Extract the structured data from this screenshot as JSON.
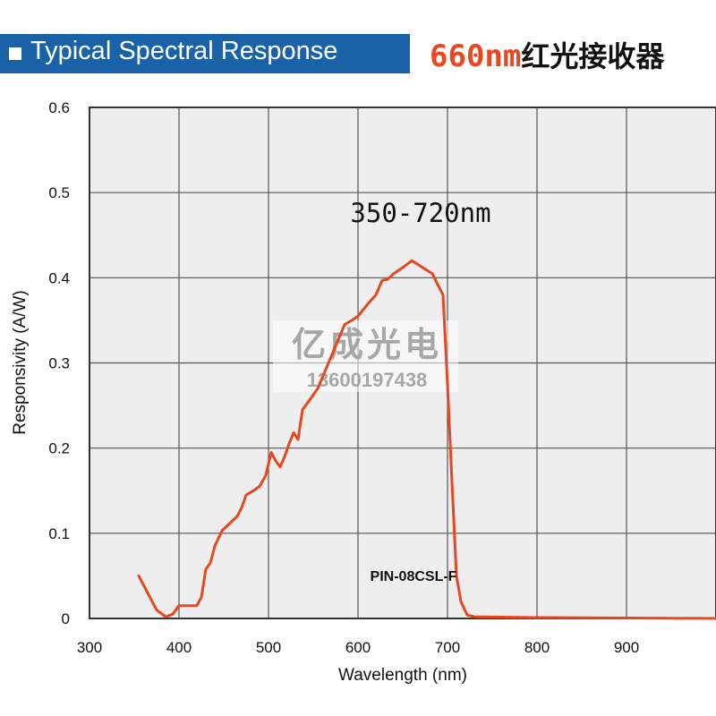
{
  "header": {
    "title": "Typical Spectral Response",
    "model": "660nm",
    "product_name": "红光接收器"
  },
  "watermark": {
    "name": "亿成光电",
    "phone": "13600197438"
  },
  "colors": {
    "header_band": "#1a62a8",
    "curve": "#e8471f",
    "plot_background": "#eeeeee",
    "grid": "#555555",
    "model_text": "#e8471f"
  },
  "chart_data": {
    "type": "line",
    "title": "Typical Spectral Response",
    "xlabel": "Wavelength (nm)",
    "ylabel": "Responsivity (A/W)",
    "xlim": [
      300,
      1000
    ],
    "ylim": [
      0,
      0.6
    ],
    "x_ticks": [
      300,
      400,
      500,
      600,
      700,
      800,
      900
    ],
    "y_ticks": [
      0,
      0.1,
      0.2,
      0.3,
      0.4,
      0.5,
      0.6
    ],
    "y_tick_labels": [
      "0",
      "0.1",
      "0.2",
      "0.3",
      "0.4",
      "0.5",
      "0.6"
    ],
    "grid": true,
    "annotations": [
      "350-720nm",
      "PIN-08CSL-F"
    ],
    "series": [
      {
        "x": [
          355,
          365,
          375,
          385,
          393,
          400,
          410,
          420,
          425,
          430,
          435,
          440,
          448,
          458,
          465,
          470,
          475,
          480,
          490,
          497,
          503,
          508,
          513,
          518,
          523,
          528,
          533,
          538,
          545,
          555,
          565,
          575,
          585,
          593,
          600,
          610,
          620,
          627,
          633,
          640,
          650,
          660,
          665,
          675,
          683,
          690,
          695,
          700,
          705,
          710,
          715,
          722,
          730,
          800,
          900,
          1000
        ],
        "y": [
          0.05,
          0.03,
          0.01,
          0.002,
          0.005,
          0.015,
          0.015,
          0.015,
          0.025,
          0.058,
          0.065,
          0.085,
          0.103,
          0.113,
          0.12,
          0.13,
          0.145,
          0.148,
          0.155,
          0.168,
          0.195,
          0.185,
          0.178,
          0.19,
          0.205,
          0.218,
          0.21,
          0.245,
          0.255,
          0.27,
          0.295,
          0.32,
          0.345,
          0.35,
          0.355,
          0.368,
          0.38,
          0.397,
          0.398,
          0.405,
          0.412,
          0.42,
          0.417,
          0.41,
          0.405,
          0.39,
          0.38,
          0.275,
          0.16,
          0.05,
          0.02,
          0.004,
          0.002,
          0.001,
          0.0005,
          0.0
        ]
      }
    ]
  }
}
